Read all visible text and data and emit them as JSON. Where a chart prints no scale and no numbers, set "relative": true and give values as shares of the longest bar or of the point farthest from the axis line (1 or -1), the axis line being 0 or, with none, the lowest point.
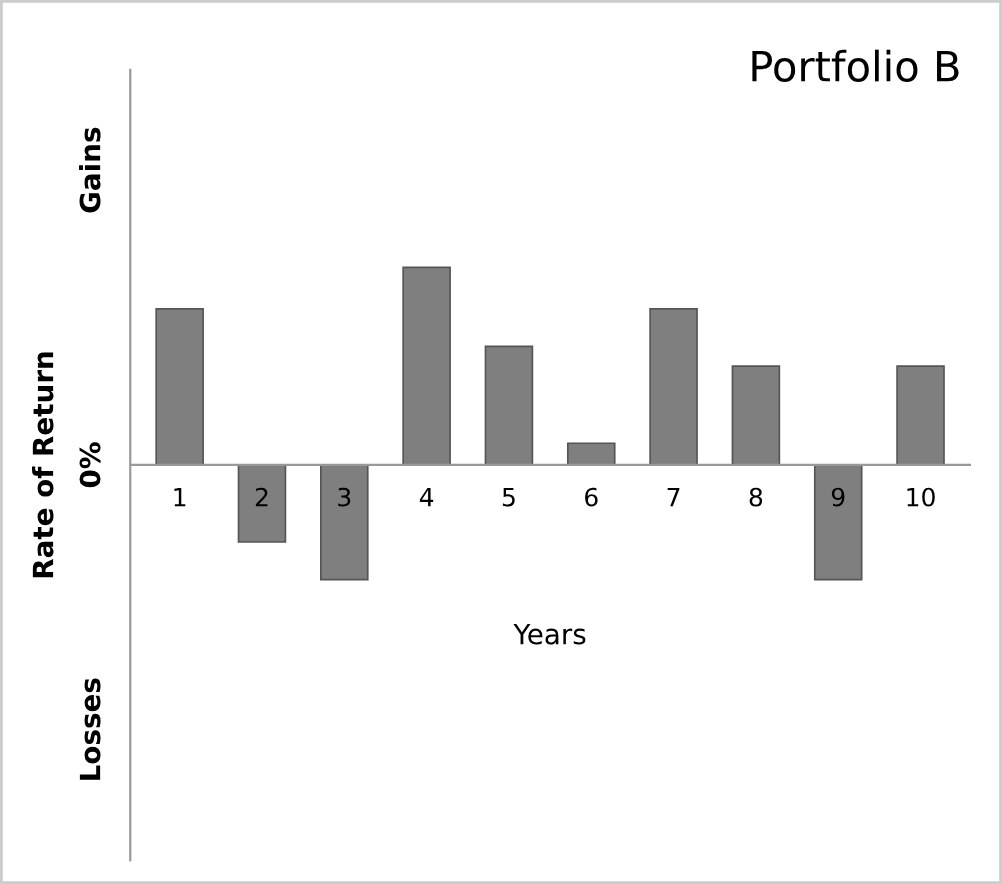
{
  "chart_data": {
    "type": "bar",
    "title": "Portfolio B",
    "xlabel": "Years",
    "ylabel": "Rate of Return",
    "annotations": [
      "Gains",
      "0%",
      "Losses"
    ],
    "categories": [
      "1",
      "2",
      "3",
      "4",
      "5",
      "6",
      "7",
      "8",
      "9",
      "10"
    ],
    "values": [
      0.79,
      -0.39,
      -0.58,
      1,
      0.6,
      0.11,
      0.79,
      0.5,
      -0.58,
      0.5
    ],
    "color": "#7f7f7f",
    "relative": true,
    "grid": false,
    "legend": false
  }
}
